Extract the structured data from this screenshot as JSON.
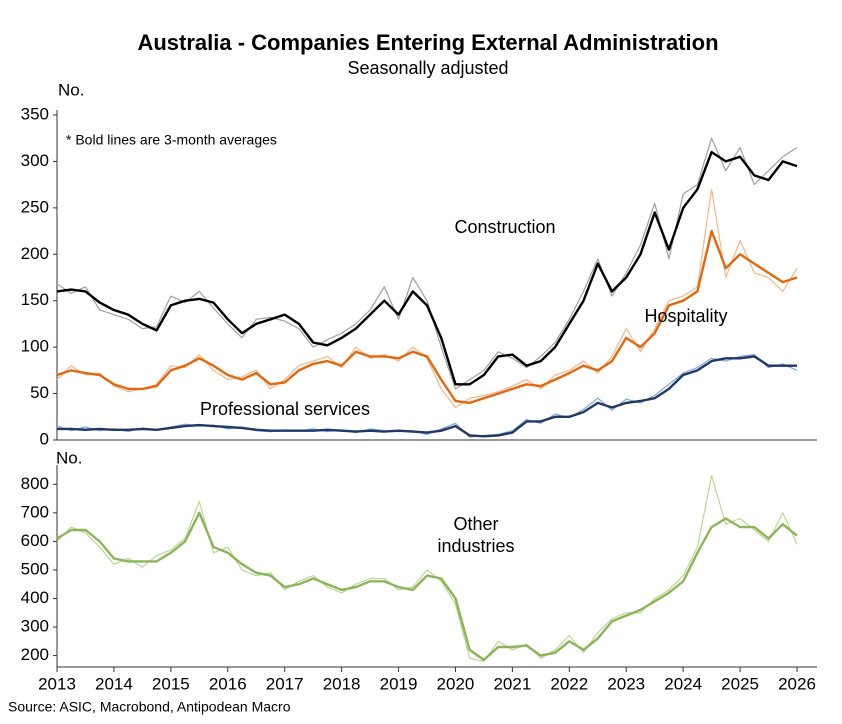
{
  "chart_data": [
    {
      "type": "line",
      "title": "Australia - Companies Entering External Administration",
      "subtitle": "Seasonally adjusted",
      "y_label": "No.",
      "annotation": "* Bold lines are 3-month averages",
      "x": [
        2013,
        2013.25,
        2013.5,
        2013.75,
        2014,
        2014.25,
        2014.5,
        2014.75,
        2015,
        2015.25,
        2015.5,
        2015.75,
        2016,
        2016.25,
        2016.5,
        2016.75,
        2017,
        2017.25,
        2017.5,
        2017.75,
        2018,
        2018.25,
        2018.5,
        2018.75,
        2019,
        2019.25,
        2019.5,
        2019.75,
        2020,
        2020.25,
        2020.5,
        2020.75,
        2021,
        2021.25,
        2021.5,
        2021.75,
        2022,
        2022.25,
        2022.5,
        2022.75,
        2023,
        2023.25,
        2023.5,
        2023.75,
        2024,
        2024.25,
        2024.5,
        2024.75,
        2025,
        2025.25,
        2025.5,
        2025.75,
        2026
      ],
      "xlim": [
        2013,
        2026
      ],
      "ylim": [
        0,
        350
      ],
      "yticks": [
        0,
        50,
        100,
        150,
        200,
        250,
        300,
        350
      ],
      "series": [
        {
          "name": "Construction",
          "color": "#000000",
          "raw_color": "#a0a0a0",
          "values": [
            160,
            162,
            160,
            148,
            140,
            135,
            125,
            118,
            145,
            150,
            152,
            148,
            130,
            115,
            125,
            130,
            135,
            125,
            105,
            102,
            110,
            120,
            135,
            150,
            135,
            160,
            145,
            110,
            60,
            60,
            70,
            90,
            92,
            80,
            85,
            100,
            125,
            150,
            190,
            160,
            175,
            200,
            245,
            205,
            250,
            270,
            310,
            300,
            305,
            285,
            280,
            300,
            295
          ],
          "raw_values": [
            168,
            158,
            165,
            140,
            135,
            130,
            120,
            122,
            155,
            148,
            160,
            142,
            125,
            110,
            130,
            132,
            128,
            120,
            100,
            108,
            115,
            125,
            140,
            165,
            130,
            175,
            150,
            100,
            55,
            65,
            75,
            95,
            88,
            78,
            90,
            105,
            130,
            160,
            195,
            155,
            180,
            210,
            255,
            195,
            265,
            275,
            325,
            290,
            315,
            275,
            290,
            305,
            315
          ]
        },
        {
          "name": "Hospitality",
          "color": "#e0690f",
          "raw_color": "#f5b58a",
          "values": [
            70,
            75,
            72,
            70,
            60,
            55,
            55,
            58,
            75,
            80,
            88,
            80,
            70,
            65,
            72,
            60,
            62,
            75,
            82,
            85,
            80,
            95,
            90,
            90,
            88,
            95,
            90,
            65,
            42,
            40,
            45,
            50,
            55,
            60,
            58,
            65,
            72,
            80,
            75,
            85,
            110,
            100,
            115,
            145,
            150,
            160,
            225,
            185,
            200,
            190,
            180,
            170,
            175
          ],
          "raw_values": [
            65,
            80,
            70,
            72,
            58,
            52,
            55,
            60,
            80,
            78,
            92,
            75,
            65,
            68,
            75,
            55,
            65,
            80,
            85,
            90,
            78,
            100,
            88,
            92,
            85,
            100,
            88,
            55,
            35,
            45,
            48,
            52,
            58,
            65,
            55,
            70,
            75,
            85,
            72,
            90,
            120,
            95,
            120,
            150,
            155,
            165,
            270,
            175,
            215,
            180,
            175,
            160,
            185
          ]
        },
        {
          "name": "Professional services",
          "color": "#1f3864",
          "raw_color": "#7fa7d9",
          "values": [
            12,
            12,
            11,
            12,
            11,
            11,
            12,
            11,
            13,
            15,
            16,
            15,
            14,
            13,
            11,
            10,
            10,
            10,
            10,
            11,
            10,
            9,
            10,
            9,
            10,
            9,
            8,
            10,
            15,
            5,
            4,
            5,
            8,
            20,
            20,
            25,
            25,
            30,
            40,
            35,
            40,
            42,
            45,
            55,
            70,
            75,
            85,
            88,
            88,
            90,
            80,
            80,
            80
          ],
          "raw_values": [
            15,
            10,
            14,
            10,
            12,
            9,
            13,
            11,
            14,
            17,
            15,
            16,
            12,
            14,
            10,
            9,
            11,
            10,
            12,
            9,
            11,
            8,
            12,
            10,
            9,
            10,
            6,
            12,
            18,
            3,
            5,
            6,
            10,
            22,
            18,
            28,
            24,
            33,
            45,
            32,
            44,
            40,
            48,
            60,
            72,
            78,
            88,
            85,
            90,
            92,
            78,
            82,
            75
          ]
        }
      ]
    },
    {
      "type": "line",
      "y_label": "No.",
      "x": [
        2013,
        2013.25,
        2013.5,
        2013.75,
        2014,
        2014.25,
        2014.5,
        2014.75,
        2015,
        2015.25,
        2015.5,
        2015.75,
        2016,
        2016.25,
        2016.5,
        2016.75,
        2017,
        2017.25,
        2017.5,
        2017.75,
        2018,
        2018.25,
        2018.5,
        2018.75,
        2019,
        2019.25,
        2019.5,
        2019.75,
        2020,
        2020.25,
        2020.5,
        2020.75,
        2021,
        2021.25,
        2021.5,
        2021.75,
        2022,
        2022.25,
        2022.5,
        2022.75,
        2023,
        2023.25,
        2023.5,
        2023.75,
        2024,
        2024.25,
        2024.5,
        2024.75,
        2025,
        2025.25,
        2025.5,
        2025.75,
        2026
      ],
      "xlim": [
        2013,
        2026
      ],
      "xticks": [
        2013,
        2014,
        2015,
        2016,
        2017,
        2018,
        2019,
        2020,
        2021,
        2022,
        2023,
        2024,
        2025,
        2026
      ],
      "ylim": [
        160,
        850
      ],
      "yticks": [
        200,
        300,
        400,
        500,
        600,
        700,
        800
      ],
      "series": [
        {
          "name": "Other industries",
          "color": "#8db45a",
          "raw_color": "#bcd795",
          "values": [
            610,
            640,
            640,
            600,
            540,
            530,
            530,
            530,
            560,
            600,
            700,
            580,
            560,
            520,
            490,
            480,
            440,
            450,
            470,
            450,
            430,
            440,
            460,
            460,
            440,
            430,
            480,
            470,
            400,
            220,
            185,
            230,
            230,
            235,
            200,
            210,
            250,
            220,
            260,
            320,
            340,
            360,
            390,
            420,
            460,
            560,
            650,
            680,
            650,
            650,
            610,
            660,
            620
          ],
          "raw_values": [
            600,
            650,
            630,
            580,
            520,
            540,
            510,
            550,
            570,
            610,
            740,
            560,
            580,
            500,
            480,
            490,
            430,
            460,
            480,
            440,
            420,
            450,
            470,
            470,
            430,
            440,
            500,
            460,
            380,
            190,
            180,
            250,
            220,
            240,
            190,
            220,
            270,
            210,
            280,
            330,
            350,
            350,
            400,
            430,
            480,
            580,
            830,
            660,
            680,
            640,
            600,
            700,
            590
          ]
        }
      ]
    }
  ],
  "source": "Source: ASIC, Macrobond, Antipodean Macro"
}
